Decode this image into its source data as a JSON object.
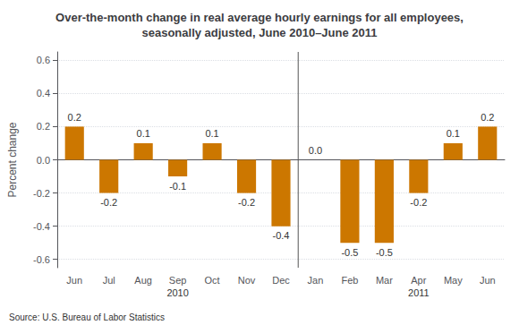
{
  "chart_data": {
    "type": "bar",
    "title": "Over-the-month change in real average hourly earnings for all employees,\nseasonally adjusted, June 2010–June 2011",
    "ylabel": "Percent change",
    "source": "Source: U.S. Bureau of Labor Statistics",
    "categories": [
      "Jun",
      "Jul",
      "Aug",
      "Sep",
      "Oct",
      "Nov",
      "Dec",
      "Jan",
      "Feb",
      "Mar",
      "Apr",
      "May",
      "Jun"
    ],
    "values": [
      0.2,
      -0.2,
      0.1,
      -0.1,
      0.1,
      -0.2,
      -0.4,
      0.0,
      -0.5,
      -0.5,
      -0.2,
      0.1,
      0.2
    ],
    "value_labels": [
      "0.2",
      "-0.2",
      "0.1",
      "-0.1",
      "0.1",
      "-0.2",
      "-0.4",
      "0.0",
      "-0.5",
      "-0.5",
      "-0.2",
      "0.1",
      "0.2"
    ],
    "data_labels": true,
    "color": "#CC7700",
    "ylim": [
      -0.65,
      0.65
    ],
    "yticks": [
      -0.6,
      -0.4,
      -0.2,
      {
        "value": 0,
        "label": "0.0"
      },
      0.2,
      0.4,
      0.6
    ],
    "grid": true,
    "annotations": [
      {
        "text": "2010",
        "x": 3.0
      },
      {
        "text": "2011",
        "x": 10.0
      }
    ]
  }
}
